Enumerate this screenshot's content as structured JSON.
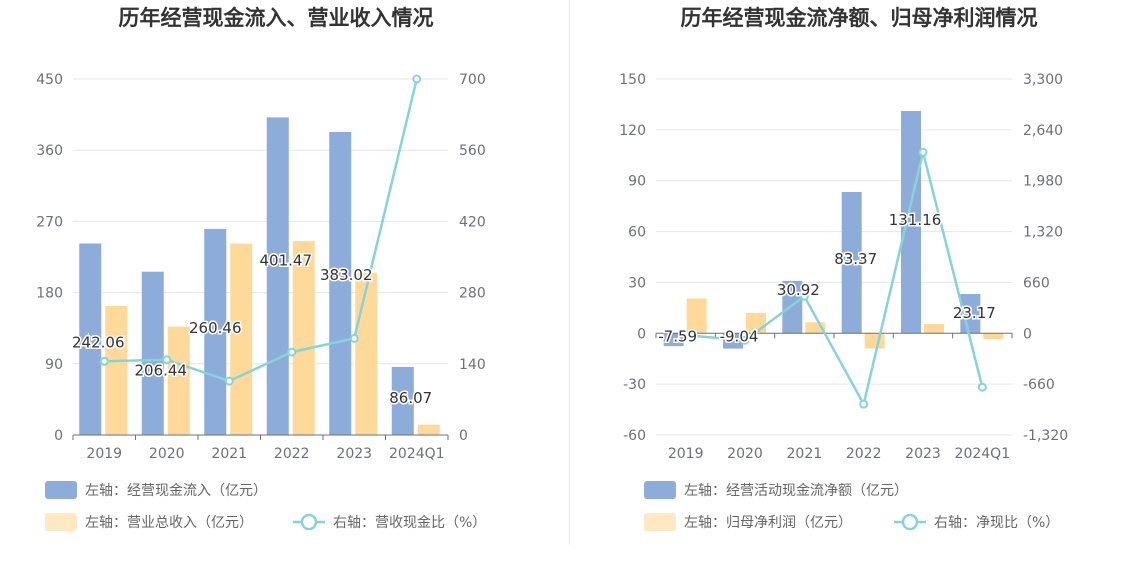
{
  "colors": {
    "bar_primary": "#8eacd9",
    "bar_secondary": "#ffd99a",
    "line": "#86d3d9",
    "grid": "#e3e6ef",
    "axis": "#6e7079"
  },
  "chart_data": [
    {
      "type": "bar",
      "title": "历年经营现金流入、营业收入情况",
      "categories": [
        "2019",
        "2020",
        "2021",
        "2022",
        "2023",
        "2024Q1"
      ],
      "y_left": {
        "ticks": [
          0,
          90,
          180,
          270,
          360,
          450
        ],
        "min": 0,
        "max": 450
      },
      "y_right": {
        "ticks": [
          0,
          140,
          280,
          420,
          560,
          700
        ],
        "min": 0,
        "max": 700
      },
      "series": [
        {
          "name": "左轴：经营现金流入（亿元）",
          "kind": "bar",
          "axis": "left",
          "values": [
            242.06,
            206.44,
            260.46,
            401.47,
            383.02,
            86.07
          ],
          "labels": [
            "242.06",
            "206.44",
            "260.46",
            "401.47",
            "383.02",
            "86.07"
          ]
        },
        {
          "name": "左轴：营业总收入（亿元）",
          "kind": "bar",
          "axis": "left",
          "values": [
            163,
            137,
            242,
            245,
            205,
            13
          ]
        },
        {
          "name": "右轴：营收现金比（%）",
          "kind": "line",
          "axis": "right",
          "values": [
            145,
            148,
            106,
            163,
            190,
            700
          ]
        }
      ],
      "legend": [
        {
          "text": "左轴：经营现金流入（亿元）",
          "kind": "bar",
          "series": 0
        },
        {
          "text": "左轴：营业总收入（亿元）",
          "kind": "bar",
          "series": 1
        },
        {
          "text": "右轴：营收现金比（%）",
          "kind": "line",
          "series": 2
        }
      ]
    },
    {
      "type": "bar",
      "title": "历年经营现金流净额、归母净利润情况",
      "categories": [
        "2019",
        "2020",
        "2021",
        "2022",
        "2023",
        "2024Q1"
      ],
      "y_left": {
        "ticks": [
          -60,
          -30,
          0,
          30,
          60,
          90,
          120,
          150
        ],
        "min": -60,
        "max": 150
      },
      "y_right": {
        "ticks": [
          "-1,320",
          "-660",
          "0",
          "660",
          "1,320",
          "1,980",
          "2,640",
          "3,300"
        ],
        "min": -1320,
        "max": 3300
      },
      "series": [
        {
          "name": "左轴：经营活动现金流净额（亿元）",
          "kind": "bar",
          "axis": "left",
          "values": [
            -7.59,
            -9.04,
            30.92,
            83.37,
            131.16,
            23.17
          ],
          "labels": [
            "-7.59",
            "-9.04",
            "30.92",
            "83.37",
            "131.16",
            "23.17"
          ]
        },
        {
          "name": "左轴：归母净利润（亿元）",
          "kind": "bar",
          "axis": "left",
          "values": [
            20.5,
            12,
            6.5,
            -9,
            5.5,
            -3.5
          ]
        },
        {
          "name": "右轴：净现比（%）",
          "kind": "line",
          "axis": "right",
          "values": [
            -25,
            -90,
            480,
            -920,
            2350,
            -700
          ]
        }
      ],
      "legend": [
        {
          "text": "左轴：经营活动现金流净额（亿元）",
          "kind": "bar",
          "series": 0
        },
        {
          "text": "左轴：归母净利润（亿元）",
          "kind": "bar",
          "series": 1
        },
        {
          "text": "右轴：净现比（%）",
          "kind": "line",
          "series": 2
        }
      ]
    }
  ]
}
